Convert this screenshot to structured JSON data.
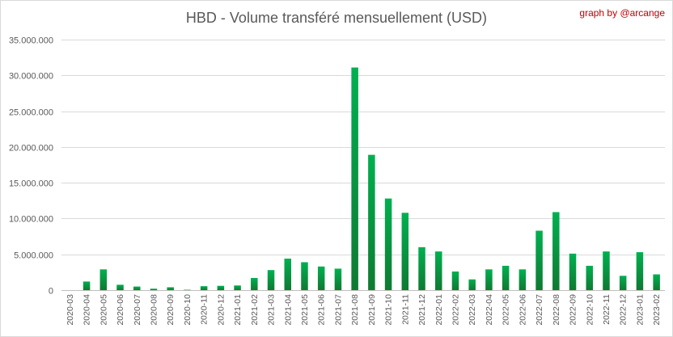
{
  "chart_data": {
    "type": "bar",
    "title": "HBD - Volume transféré mensuellement (USD)",
    "credit": "graph by @arcange",
    "xlabel": "",
    "ylabel": "",
    "ylim": [
      0,
      35000000
    ],
    "yticks": [
      0,
      5000000,
      10000000,
      15000000,
      20000000,
      25000000,
      30000000,
      35000000
    ],
    "ytick_labels": [
      "0",
      "5.000.000",
      "10.000.000",
      "15.000.000",
      "20.000.000",
      "25.000.000",
      "30.000.000",
      "35.000.000"
    ],
    "grid": true,
    "legend": "none",
    "bar_color_top": "#00b050",
    "bar_color_bottom": "#0f7a32",
    "categories": [
      "2020-03",
      "2020-04",
      "2020-05",
      "2020-06",
      "2020-07",
      "2020-08",
      "2020-09",
      "2020-10",
      "2020-11",
      "2020-12",
      "2021-01",
      "2021-02",
      "2021-03",
      "2021-04",
      "2021-05",
      "2021-06",
      "2021-07",
      "2021-08",
      "2021-09",
      "2021-10",
      "2021-11",
      "2021-12",
      "2022-01",
      "2022-02",
      "2022-03",
      "2022-04",
      "2022-05",
      "2022-06",
      "2022-07",
      "2022-08",
      "2022-09",
      "2022-10",
      "2022-11",
      "2022-12",
      "2023-01",
      "2023-02"
    ],
    "values": [
      0,
      1200000,
      2900000,
      750000,
      500000,
      200000,
      400000,
      50000,
      550000,
      600000,
      650000,
      1700000,
      2800000,
      4400000,
      3900000,
      3300000,
      3000000,
      31100000,
      18900000,
      12800000,
      10800000,
      6000000,
      5400000,
      2600000,
      1500000,
      2900000,
      3400000,
      2900000,
      8300000,
      10900000,
      5100000,
      3400000,
      5400000,
      2000000,
      5300000,
      2200000
    ]
  }
}
